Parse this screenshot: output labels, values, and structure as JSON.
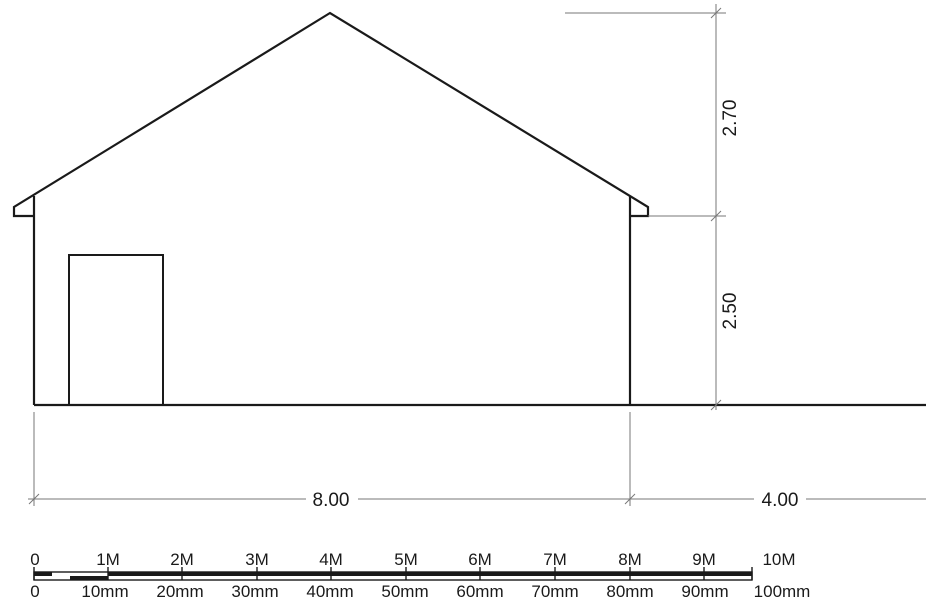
{
  "drawing": {
    "dimensions": {
      "roof_height": "2.70",
      "wall_height": "2.50",
      "building_width": "8.00",
      "extension_width": "4.00"
    },
    "scale_bar": {
      "meter_labels": [
        "0",
        "1M",
        "2M",
        "3M",
        "4M",
        "5M",
        "6M",
        "7M",
        "8M",
        "9M",
        "10M"
      ],
      "mm_labels": [
        "0",
        "10mm",
        "20mm",
        "30mm",
        "40mm",
        "50mm",
        "60mm",
        "70mm",
        "80mm",
        "90mm",
        "100mm"
      ]
    },
    "colors": {
      "line": "#1a1a1a",
      "dimension_line": "#777777",
      "background": "#ffffff"
    }
  }
}
